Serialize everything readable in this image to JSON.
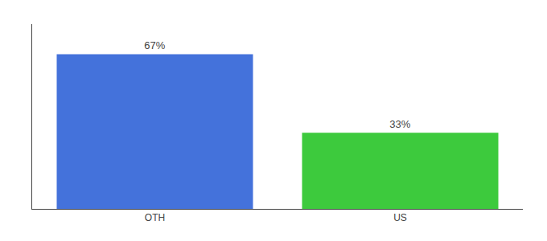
{
  "chart_data": {
    "type": "bar",
    "categories": [
      "OTH",
      "US"
    ],
    "values": [
      67,
      33
    ],
    "value_labels": [
      "67%",
      "33%"
    ],
    "data_labels": true,
    "colors": [
      "#4472db",
      "#3dca3d"
    ],
    "ylim": [
      0,
      80
    ],
    "grid": false,
    "tick_labels": "x"
  }
}
